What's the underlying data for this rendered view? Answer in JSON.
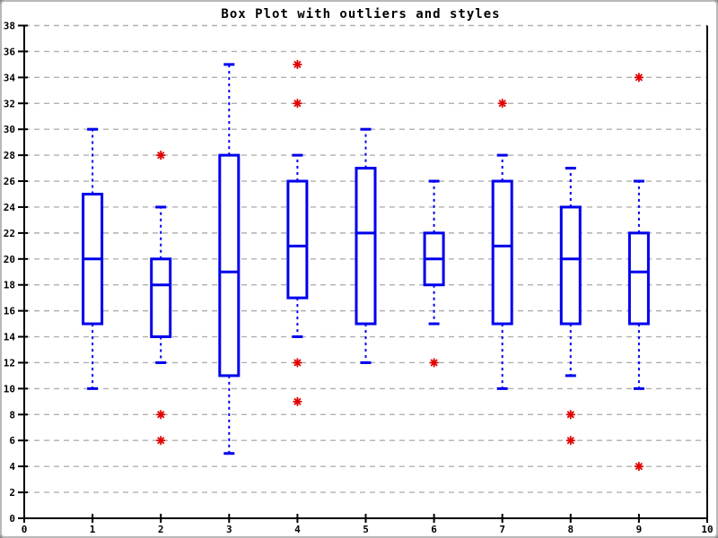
{
  "window": {
    "background": "#ffffff",
    "border_color": "#b9b9b9"
  },
  "chart_data": {
    "type": "boxplot",
    "title": "Box Plot with outliers and styles",
    "xlabel": "",
    "ylabel": "",
    "xlim": [
      0,
      10
    ],
    "ylim": [
      0,
      38
    ],
    "x_ticks": [
      0,
      1,
      2,
      3,
      4,
      5,
      6,
      7,
      8,
      9,
      10
    ],
    "y_ticks": [
      0,
      2,
      4,
      6,
      8,
      10,
      12,
      14,
      16,
      18,
      20,
      22,
      24,
      26,
      28,
      30,
      32,
      34,
      36,
      38
    ],
    "grid": "horizontal-dashed-only",
    "legend": "none",
    "styles": {
      "box_color": "#0000ee",
      "box_fill": "#ffffff",
      "whisker_style": "dashed",
      "outlier_color": "#e00000",
      "outlier_marker": "asterisk",
      "grid_color": "#b0b0b0",
      "axis_color": "#000000"
    },
    "boxes": [
      {
        "x": 1,
        "whisker_low": 10,
        "q1": 15,
        "median": 20,
        "q3": 25,
        "whisker_high": 30,
        "outliers": []
      },
      {
        "x": 2,
        "whisker_low": 12,
        "q1": 14,
        "median": 18,
        "q3": 20,
        "whisker_high": 24,
        "outliers": [
          28,
          8,
          6
        ]
      },
      {
        "x": 3,
        "whisker_low": 5,
        "q1": 11,
        "median": 19,
        "q3": 28,
        "whisker_high": 35,
        "outliers": []
      },
      {
        "x": 4,
        "whisker_low": 14,
        "q1": 17,
        "median": 21,
        "q3": 26,
        "whisker_high": 28,
        "outliers": [
          35,
          32,
          12,
          9
        ]
      },
      {
        "x": 5,
        "whisker_low": 12,
        "q1": 15,
        "median": 22,
        "q3": 27,
        "whisker_high": 30,
        "outliers": []
      },
      {
        "x": 6,
        "whisker_low": 15,
        "q1": 18,
        "median": 20,
        "q3": 22,
        "whisker_high": 26,
        "outliers": [
          12
        ]
      },
      {
        "x": 7,
        "whisker_low": 10,
        "q1": 15,
        "median": 21,
        "q3": 26,
        "whisker_high": 28,
        "outliers": [
          32
        ]
      },
      {
        "x": 8,
        "whisker_low": 11,
        "q1": 15,
        "median": 20,
        "q3": 24,
        "whisker_high": 27,
        "outliers": [
          8,
          6
        ]
      },
      {
        "x": 9,
        "whisker_low": 10,
        "q1": 15,
        "median": 19,
        "q3": 22,
        "whisker_high": 26,
        "outliers": [
          34,
          4
        ]
      }
    ]
  }
}
